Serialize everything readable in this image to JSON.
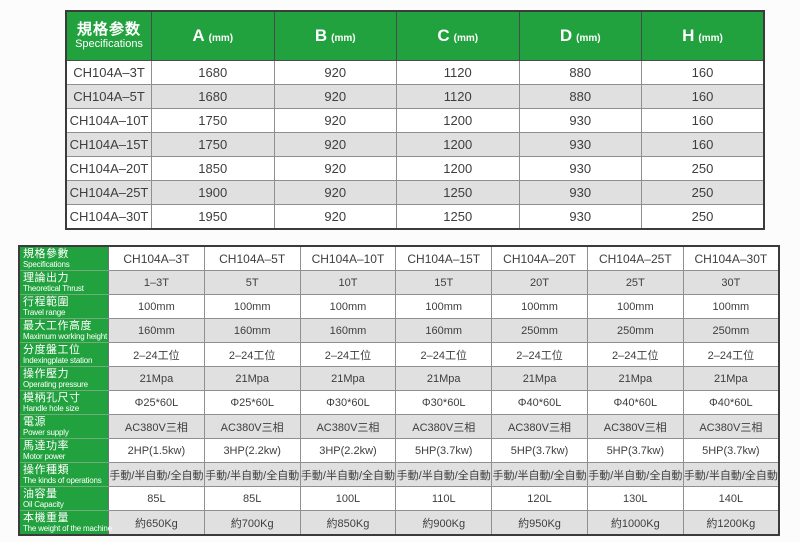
{
  "colors": {
    "accent_green": "#22a23e",
    "row_alt_gray": "#e0e0e0",
    "text": "#3e3e3e"
  },
  "top_table": {
    "header": {
      "spec_zh": "規格参数",
      "spec_en": "Specifications",
      "columns": [
        {
          "letter": "A",
          "unit": "(mm)"
        },
        {
          "letter": "B",
          "unit": "(mm)"
        },
        {
          "letter": "C",
          "unit": "(mm)"
        },
        {
          "letter": "D",
          "unit": "(mm)"
        },
        {
          "letter": "H",
          "unit": "(mm)"
        }
      ]
    },
    "rows": [
      {
        "cells": [
          "CH104A–3T",
          "1680",
          "920",
          "1120",
          "880",
          "160"
        ]
      },
      {
        "cells": [
          "CH104A–5T",
          "1680",
          "920",
          "1120",
          "880",
          "160"
        ]
      },
      {
        "cells": [
          "CH104A–10T",
          "1750",
          "920",
          "1200",
          "930",
          "160"
        ]
      },
      {
        "cells": [
          "CH104A–15T",
          "1750",
          "920",
          "1200",
          "930",
          "160"
        ]
      },
      {
        "cells": [
          "CH104A–20T",
          "1850",
          "920",
          "1200",
          "930",
          "250"
        ]
      },
      {
        "cells": [
          "CH104A–25T",
          "1900",
          "920",
          "1250",
          "930",
          "250"
        ]
      },
      {
        "cells": [
          "CH104A–30T",
          "1950",
          "920",
          "1250",
          "930",
          "250"
        ]
      }
    ]
  },
  "bottom_table": {
    "rows": [
      {
        "label": {
          "zh": "規格參數",
          "en": "Specifications"
        },
        "cells": [
          "CH104A–3T",
          "CH104A–5T",
          "CH104A–10T",
          "CH104A–15T",
          "CH104A–20T",
          "CH104A–25T",
          "CH104A–30T"
        ]
      },
      {
        "label": {
          "zh": "理論出力",
          "en": "Theoretical Thrust"
        },
        "cells": [
          "1–3T",
          "5T",
          "10T",
          "15T",
          "20T",
          "25T",
          "30T"
        ]
      },
      {
        "label": {
          "zh": "行程範圍",
          "en": "Travel range"
        },
        "cells": [
          "100mm",
          "100mm",
          "100mm",
          "100mm",
          "100mm",
          "100mm",
          "100mm"
        ]
      },
      {
        "label": {
          "zh": "最大工作高度",
          "en": "Maximum working height"
        },
        "cells": [
          "160mm",
          "160mm",
          "160mm",
          "160mm",
          "250mm",
          "250mm",
          "250mm"
        ]
      },
      {
        "label": {
          "zh": "分度盤工位",
          "en": "Indexingplate station"
        },
        "cells": [
          "2–24工位",
          "2–24工位",
          "2–24工位",
          "2–24工位",
          "2–24工位",
          "2–24工位",
          "2–24工位"
        ]
      },
      {
        "label": {
          "zh": "操作壓力",
          "en": "Operating pressure"
        },
        "cells": [
          "21Mpa",
          "21Mpa",
          "21Mpa",
          "21Mpa",
          "21Mpa",
          "21Mpa",
          "21Mpa"
        ]
      },
      {
        "label": {
          "zh": "模柄孔尺寸",
          "en": "Handle hole size"
        },
        "cells": [
          "Φ25*60L",
          "Φ25*60L",
          "Φ30*60L",
          "Φ30*60L",
          "Φ40*60L",
          "Φ40*60L",
          "Φ40*60L"
        ]
      },
      {
        "label": {
          "zh": "電源",
          "en": "Power supply"
        },
        "cells": [
          "AC380V三相",
          "AC380V三相",
          "AC380V三相",
          "AC380V三相",
          "AC380V三相",
          "AC380V三相",
          "AC380V三相"
        ]
      },
      {
        "label": {
          "zh": "馬達功率",
          "en": "Motor power"
        },
        "cells": [
          "2HP(1.5kw)",
          "3HP(2.2kw)",
          "3HP(2.2kw)",
          "5HP(3.7kw)",
          "5HP(3.7kw)",
          "5HP(3.7kw)",
          "5HP(3.7kw)"
        ]
      },
      {
        "label": {
          "zh": "操作種類",
          "en": "The kinds of operations"
        },
        "cells": [
          "手動/半自動/全自動",
          "手動/半自動/全自動",
          "手動/半自動/全自動",
          "手動/半自動/全自動",
          "手動/半自動/全自動",
          "手動/半自動/全自動",
          "手動/半自動/全自動"
        ]
      },
      {
        "label": {
          "zh": "油容量",
          "en": "Oil Capacity"
        },
        "cells": [
          "85L",
          "85L",
          "100L",
          "110L",
          "120L",
          "130L",
          "140L"
        ]
      },
      {
        "label": {
          "zh": "本機重量",
          "en": "The weight of the machine"
        },
        "cells": [
          "約650Kg",
          "約700Kg",
          "約850Kg",
          "約900Kg",
          "約950Kg",
          "約1000Kg",
          "約1200Kg"
        ]
      }
    ]
  }
}
